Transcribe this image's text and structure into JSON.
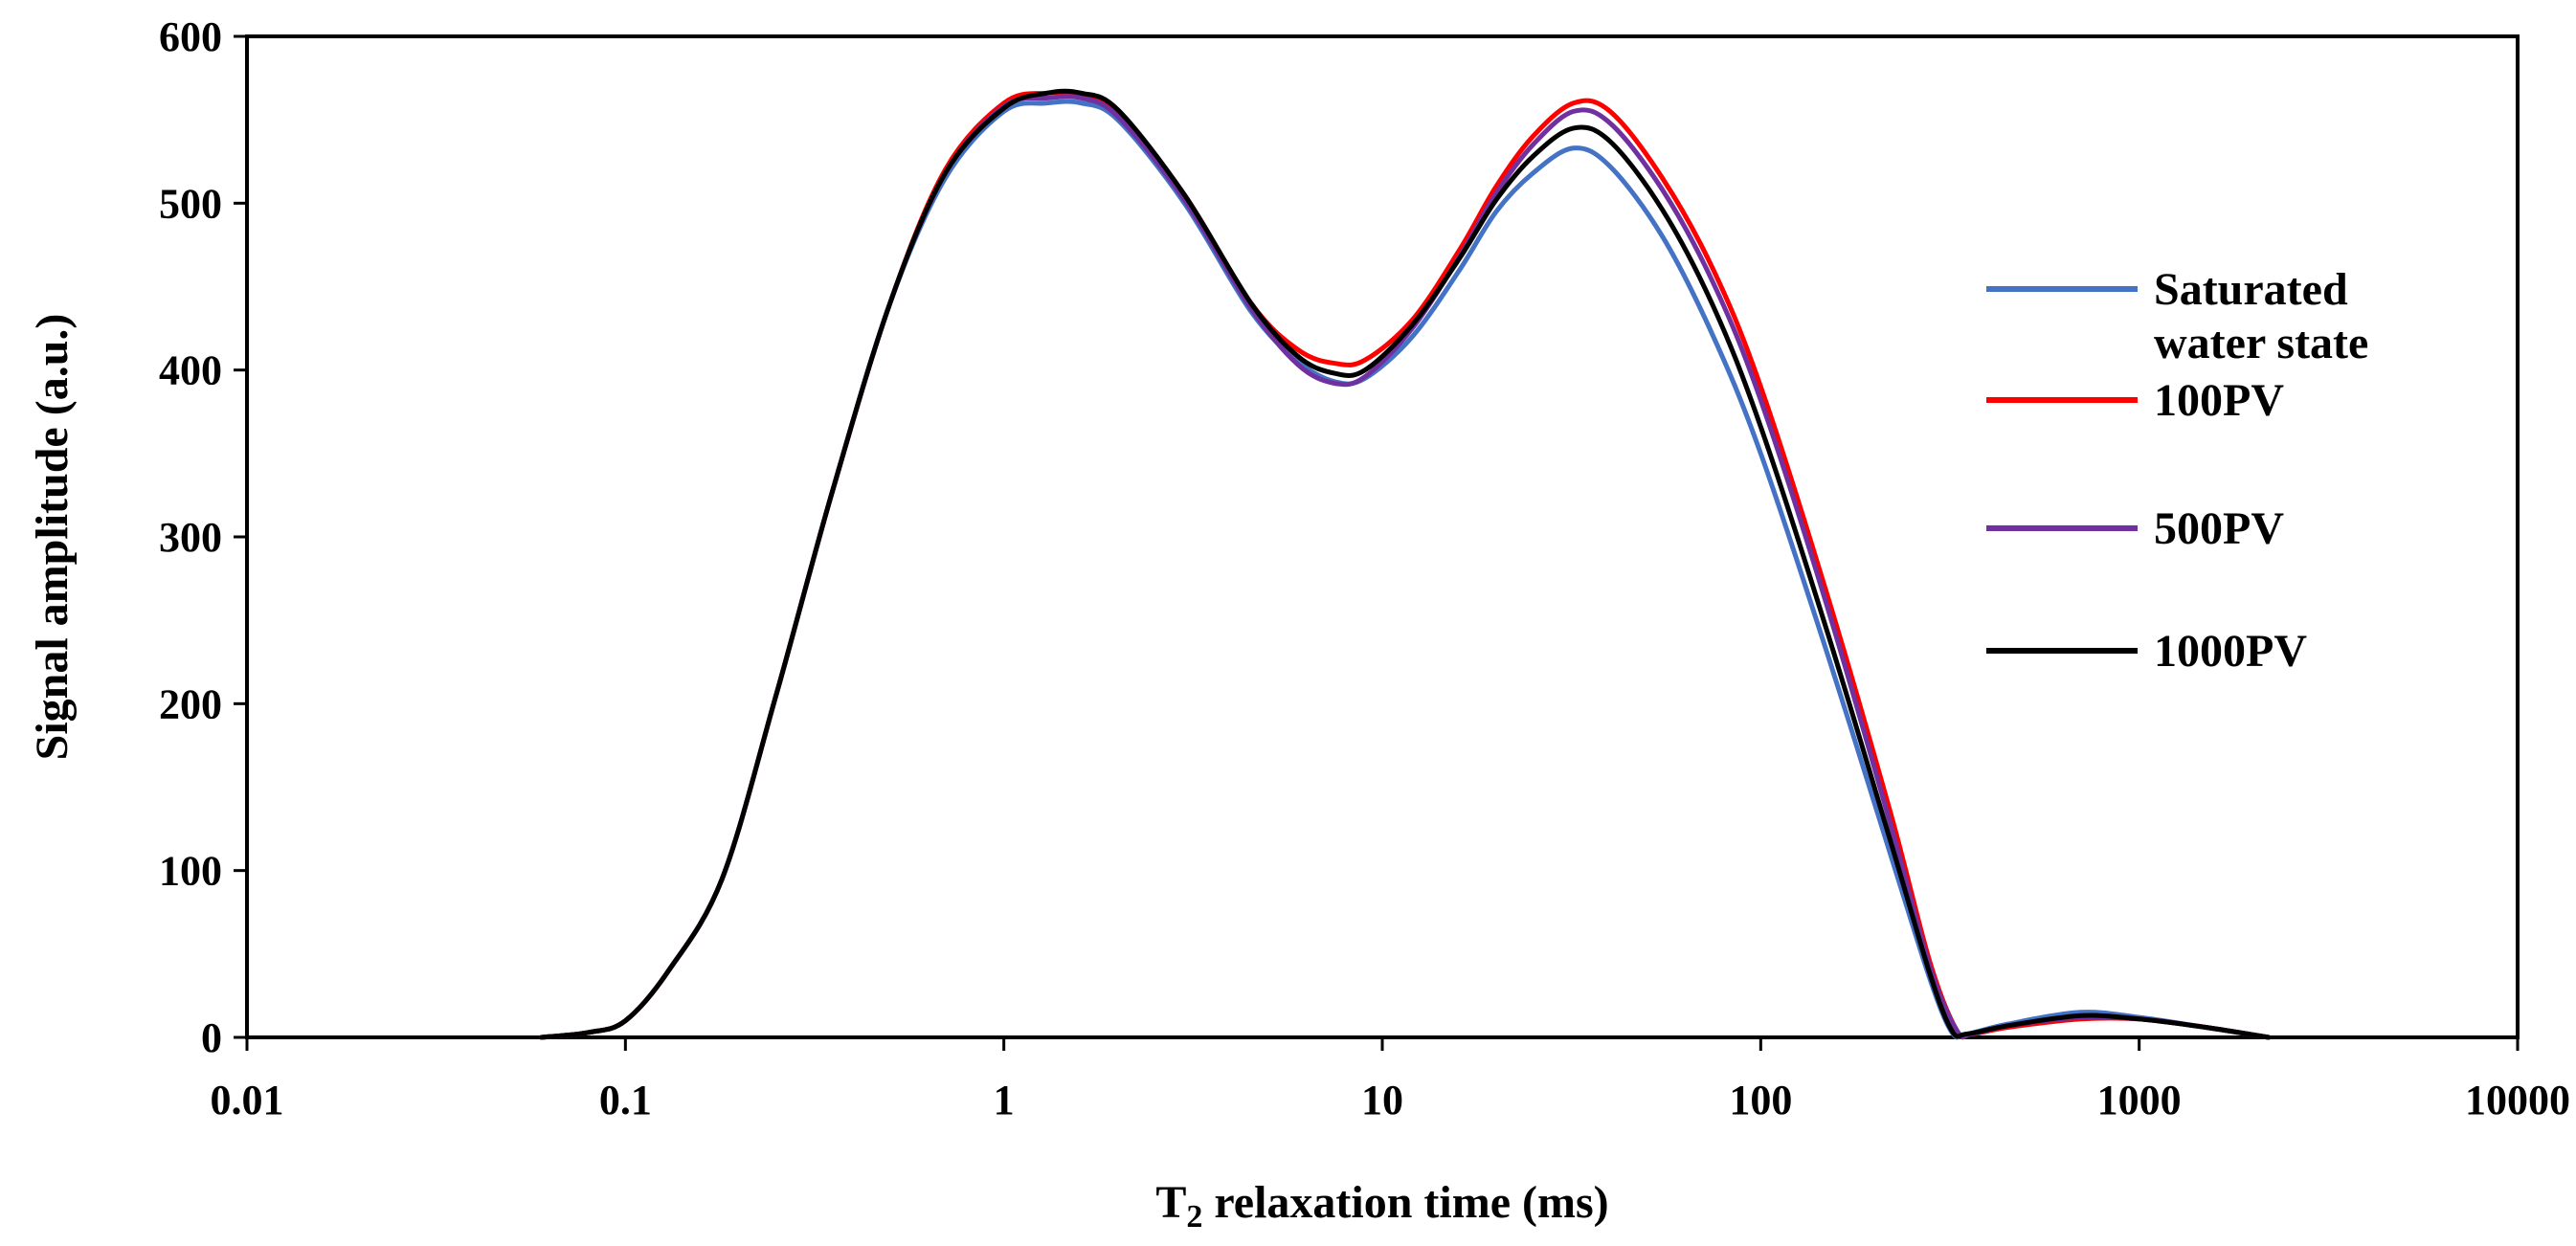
{
  "chart_data": {
    "type": "line",
    "title": "",
    "xlabel_main": "T",
    "xlabel_sub": "2",
    "xlabel_rest": " relaxation time (ms)",
    "ylabel": "Signal amplitude (a.u.)",
    "xscale": "log",
    "xlim": [
      0.01,
      10000
    ],
    "ylim": [
      0,
      600
    ],
    "xticks": [
      0.01,
      0.1,
      1,
      10,
      100,
      1000,
      10000
    ],
    "xtick_labels": [
      "0.01",
      "0.1",
      "1",
      "10",
      "100",
      "1000",
      "10000"
    ],
    "yticks": [
      0,
      100,
      200,
      300,
      400,
      500,
      600
    ],
    "ytick_labels": [
      "0",
      "100",
      "200",
      "300",
      "400",
      "500",
      "600"
    ],
    "grid": false,
    "legend_position": "right",
    "series": [
      {
        "name": "Saturated water state",
        "legend_lines": [
          "Saturated",
          "water state"
        ],
        "color": "#4472C4",
        "x": [
          0.06,
          0.08,
          0.1,
          0.13,
          0.18,
          0.25,
          0.35,
          0.5,
          0.7,
          1.0,
          1.3,
          1.6,
          2.0,
          3.0,
          4.5,
          6.0,
          7.5,
          9.0,
          12,
          16,
          20,
          25,
          32,
          40,
          55,
          75,
          100,
          150,
          220,
          280,
          320,
          350,
          450,
          700,
          1000,
          1500,
          2200
        ],
        "y": [
          0,
          3,
          10,
          40,
          95,
          205,
          325,
          440,
          515,
          555,
          560,
          560,
          550,
          500,
          435,
          405,
          393,
          395,
          420,
          460,
          495,
          518,
          533,
          522,
          480,
          420,
          350,
          230,
          110,
          35,
          3,
          2,
          8,
          15,
          12,
          6,
          0
        ]
      },
      {
        "name": "100PV",
        "legend_lines": [
          "100PV"
        ],
        "color": "#FF0000",
        "x": [
          0.06,
          0.08,
          0.1,
          0.13,
          0.18,
          0.25,
          0.35,
          0.5,
          0.7,
          1.0,
          1.3,
          1.6,
          2.0,
          3.0,
          4.5,
          6.0,
          7.5,
          9.0,
          12,
          16,
          20,
          25,
          32,
          40,
          55,
          75,
          100,
          150,
          220,
          280,
          330,
          360,
          450,
          700,
          1000,
          1500,
          2200
        ],
        "y": [
          0,
          3,
          10,
          40,
          95,
          205,
          325,
          440,
          520,
          560,
          566,
          565,
          555,
          505,
          440,
          412,
          404,
          406,
          430,
          472,
          510,
          540,
          560,
          555,
          515,
          460,
          390,
          265,
          135,
          45,
          4,
          2,
          6,
          11,
          11,
          6,
          0
        ]
      },
      {
        "name": "500PV",
        "legend_lines": [
          "500PV"
        ],
        "color": "#7030A0",
        "x": [
          0.06,
          0.08,
          0.1,
          0.13,
          0.18,
          0.25,
          0.35,
          0.5,
          0.7,
          1.0,
          1.3,
          1.6,
          2.0,
          3.0,
          4.5,
          6.0,
          7.5,
          9.0,
          12,
          16,
          20,
          25,
          32,
          40,
          55,
          75,
          100,
          150,
          220,
          280,
          330,
          360,
          450,
          700,
          1000,
          1500,
          2200
        ],
        "y": [
          0,
          3,
          10,
          40,
          95,
          205,
          325,
          440,
          518,
          558,
          563,
          563,
          552,
          502,
          437,
          403,
          392,
          396,
          425,
          468,
          506,
          535,
          555,
          548,
          508,
          452,
          382,
          258,
          128,
          42,
          4,
          2,
          7,
          12,
          11,
          6,
          0
        ]
      },
      {
        "name": "1000PV",
        "legend_lines": [
          "1000PV"
        ],
        "color": "#000000",
        "x": [
          0.06,
          0.08,
          0.1,
          0.13,
          0.18,
          0.25,
          0.35,
          0.5,
          0.7,
          1.0,
          1.3,
          1.6,
          2.0,
          3.0,
          4.5,
          6.0,
          7.5,
          9.0,
          12,
          16,
          20,
          25,
          32,
          40,
          55,
          75,
          100,
          150,
          220,
          280,
          320,
          350,
          450,
          700,
          1000,
          1500,
          2200
        ],
        "y": [
          0,
          3,
          10,
          40,
          95,
          205,
          325,
          440,
          518,
          557,
          566,
          566,
          556,
          505,
          440,
          408,
          398,
          400,
          427,
          467,
          502,
          528,
          545,
          537,
          496,
          438,
          366,
          243,
          118,
          38,
          4,
          2,
          7,
          13,
          11,
          6,
          0
        ]
      }
    ]
  }
}
